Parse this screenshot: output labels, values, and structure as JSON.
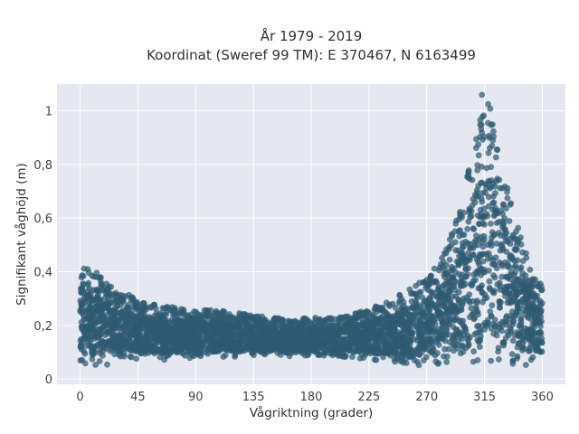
{
  "chart_data": {
    "type": "scatter",
    "title_lines": [
      "År 1979 - 2019",
      "Koordinat (Sweref 99 TM): E 370467, N 6163499"
    ],
    "xlabel": "Vågriktning (grader)",
    "ylabel": "Signifikant våghöjd (m)",
    "xlim": [
      -18,
      378
    ],
    "ylim": [
      -0.02,
      1.1
    ],
    "xticks": [
      0,
      45,
      90,
      135,
      180,
      225,
      270,
      315,
      360
    ],
    "yticks": [
      0,
      0.2,
      0.4,
      0.6,
      0.8,
      1
    ],
    "ytick_labels": [
      "0",
      "0,2",
      "0,4",
      "0,6",
      "0,8",
      "1"
    ],
    "grid": true,
    "colors": {
      "background": "#e5e8f0",
      "grid": "#ffffff",
      "marker": "#2f5a72"
    },
    "envelope": {
      "direction_deg": [
        0,
        10,
        20,
        30,
        45,
        60,
        75,
        90,
        105,
        120,
        135,
        150,
        165,
        180,
        195,
        210,
        225,
        240,
        255,
        270,
        285,
        295,
        305,
        312,
        318,
        325,
        335,
        345,
        355,
        360
      ],
      "upper_m": [
        0.44,
        0.41,
        0.37,
        0.33,
        0.3,
        0.28,
        0.27,
        0.26,
        0.26,
        0.25,
        0.24,
        0.23,
        0.22,
        0.23,
        0.23,
        0.24,
        0.26,
        0.29,
        0.33,
        0.38,
        0.48,
        0.62,
        0.84,
        1.02,
        1.04,
        0.9,
        0.68,
        0.5,
        0.42,
        0.4
      ],
      "lower_m": [
        0.06,
        0.05,
        0.05,
        0.06,
        0.07,
        0.07,
        0.07,
        0.08,
        0.08,
        0.08,
        0.08,
        0.08,
        0.08,
        0.08,
        0.08,
        0.08,
        0.07,
        0.06,
        0.05,
        0.05,
        0.04,
        0.04,
        0.04,
        0.04,
        0.04,
        0.04,
        0.04,
        0.05,
        0.05,
        0.05
      ]
    },
    "max_point": {
      "direction_deg": 313,
      "height_m": 1.06
    }
  }
}
